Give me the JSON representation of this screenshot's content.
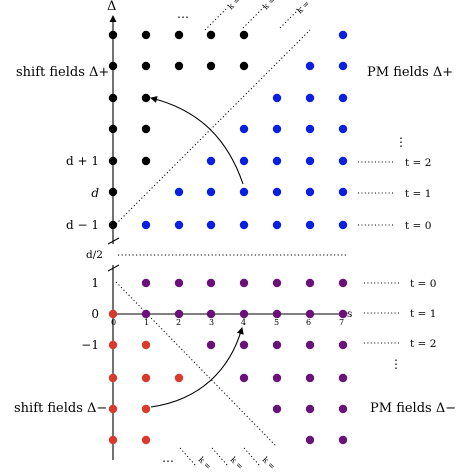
{
  "axes": {
    "y_symbol": "Δ",
    "x_symbol": "s",
    "x_ticks": [
      "0",
      "1",
      "2",
      "3",
      "4",
      "5",
      "6",
      "7"
    ],
    "upper_y_labels": [
      "d + 1",
      "d",
      "d − 1"
    ],
    "mid_label": "d/2",
    "lower_y_labels": [
      "1",
      "0",
      "−1"
    ],
    "top_ellipsis": "…",
    "bottom_ellipsis": "…"
  },
  "region_labels": {
    "shift_plus": "shift fields Δ+",
    "pm_plus": "PM fields Δ+",
    "shift_minus": "shift fields Δ−",
    "pm_minus": "PM fields Δ−"
  },
  "upper_t_labels": [
    "t = 2",
    "t = 1",
    "t = 0"
  ],
  "lower_t_labels": [
    "t = 0",
    "t = 1",
    "t = 2"
  ],
  "vertical_dots": "⋮",
  "k_labels_top": [
    "k =",
    "k =",
    "k ="
  ],
  "k_labels_bottom": [
    "k =",
    "k =",
    "k ="
  ],
  "colors": {
    "shift_plus": "#000000",
    "pm_plus": "#0a1fe0",
    "shift_minus": "#d93a2b",
    "pm_minus": "#6a117a",
    "axis": "#000000"
  }
}
